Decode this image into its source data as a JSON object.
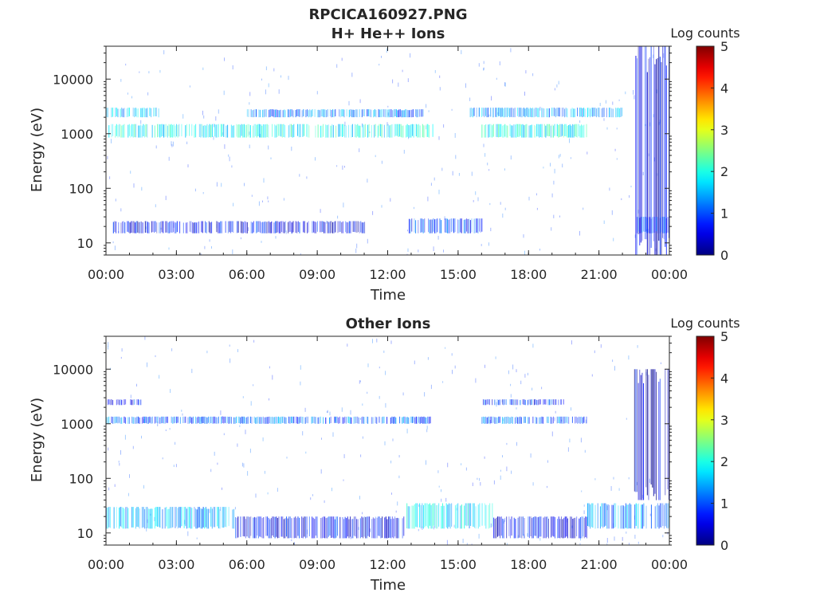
{
  "figure": {
    "title": "RPCICA160927.PNG",
    "colormap": "jet",
    "background": "#ffffff"
  },
  "chart_data": [
    {
      "type": "heatmap",
      "title": "H+ He++ Ions",
      "xlabel": "Time",
      "ylabel": "Energy (eV)",
      "x_ticks": [
        "00:00",
        "03:00",
        "06:00",
        "09:00",
        "12:00",
        "15:00",
        "18:00",
        "21:00",
        "00:00"
      ],
      "y_ticks": [
        "10",
        "100",
        "1000",
        "10000"
      ],
      "y_scale": "log",
      "ylim": [
        6,
        40000
      ],
      "xlim_hours": [
        0,
        24
      ],
      "colorbar": {
        "label": "Log counts",
        "ticks": [
          "0",
          "1",
          "2",
          "3",
          "4",
          "5"
        ],
        "range": [
          0,
          5
        ]
      },
      "bands": [
        {
          "t0": 0.0,
          "t1": 14.0,
          "e0": 850,
          "e1": 1500,
          "level": 1.9
        },
        {
          "t0": 0.0,
          "t1": 2.3,
          "e0": 2000,
          "e1": 3000,
          "level": 1.6
        },
        {
          "t0": 6.0,
          "t1": 13.5,
          "e0": 2000,
          "e1": 2800,
          "level": 1.2
        },
        {
          "t0": 16.0,
          "t1": 20.5,
          "e0": 850,
          "e1": 1500,
          "level": 1.9
        },
        {
          "t0": 15.5,
          "t1": 22.0,
          "e0": 2000,
          "e1": 3000,
          "level": 1.4
        },
        {
          "t0": 0.3,
          "t1": 11.0,
          "e0": 15,
          "e1": 25,
          "level": 0.6
        },
        {
          "t0": 12.9,
          "t1": 16.0,
          "e0": 15,
          "e1": 28,
          "level": 0.9
        },
        {
          "t0": 22.5,
          "t1": 24.0,
          "e0": 6,
          "e1": 40000,
          "level": 0.5
        },
        {
          "t0": 22.5,
          "t1": 24.0,
          "e0": 15,
          "e1": 30,
          "level": 1.0
        }
      ]
    },
    {
      "type": "heatmap",
      "title": "Other Ions",
      "xlabel": "Time",
      "ylabel": "Energy (eV)",
      "x_ticks": [
        "00:00",
        "03:00",
        "06:00",
        "09:00",
        "12:00",
        "15:00",
        "18:00",
        "21:00",
        "00:00"
      ],
      "y_ticks": [
        "10",
        "100",
        "1000",
        "10000"
      ],
      "y_scale": "log",
      "ylim": [
        6,
        40000
      ],
      "xlim_hours": [
        0,
        24
      ],
      "colorbar": {
        "label": "Log counts",
        "ticks": [
          "0",
          "1",
          "2",
          "3",
          "4",
          "5"
        ],
        "range": [
          0,
          5
        ]
      },
      "bands": [
        {
          "t0": 0.0,
          "t1": 13.8,
          "e0": 1000,
          "e1": 1350,
          "level": 1.1
        },
        {
          "t0": 0.0,
          "t1": 1.5,
          "e0": 2200,
          "e1": 2800,
          "level": 0.8
        },
        {
          "t0": 16.0,
          "t1": 20.5,
          "e0": 1000,
          "e1": 1350,
          "level": 1.1
        },
        {
          "t0": 16.0,
          "t1": 19.5,
          "e0": 2200,
          "e1": 2800,
          "level": 0.8
        },
        {
          "t0": 0.0,
          "t1": 5.5,
          "e0": 12,
          "e1": 30,
          "level": 1.5
        },
        {
          "t0": 5.5,
          "t1": 12.8,
          "e0": 8,
          "e1": 20,
          "level": 0.6
        },
        {
          "t0": 12.8,
          "t1": 16.5,
          "e0": 12,
          "e1": 35,
          "level": 1.7
        },
        {
          "t0": 16.5,
          "t1": 20.5,
          "e0": 8,
          "e1": 20,
          "level": 0.6
        },
        {
          "t0": 20.5,
          "t1": 24.0,
          "e0": 12,
          "e1": 35,
          "level": 1.3
        },
        {
          "t0": 22.5,
          "t1": 24.0,
          "e0": 40,
          "e1": 10000,
          "level": 0.4
        }
      ]
    }
  ]
}
